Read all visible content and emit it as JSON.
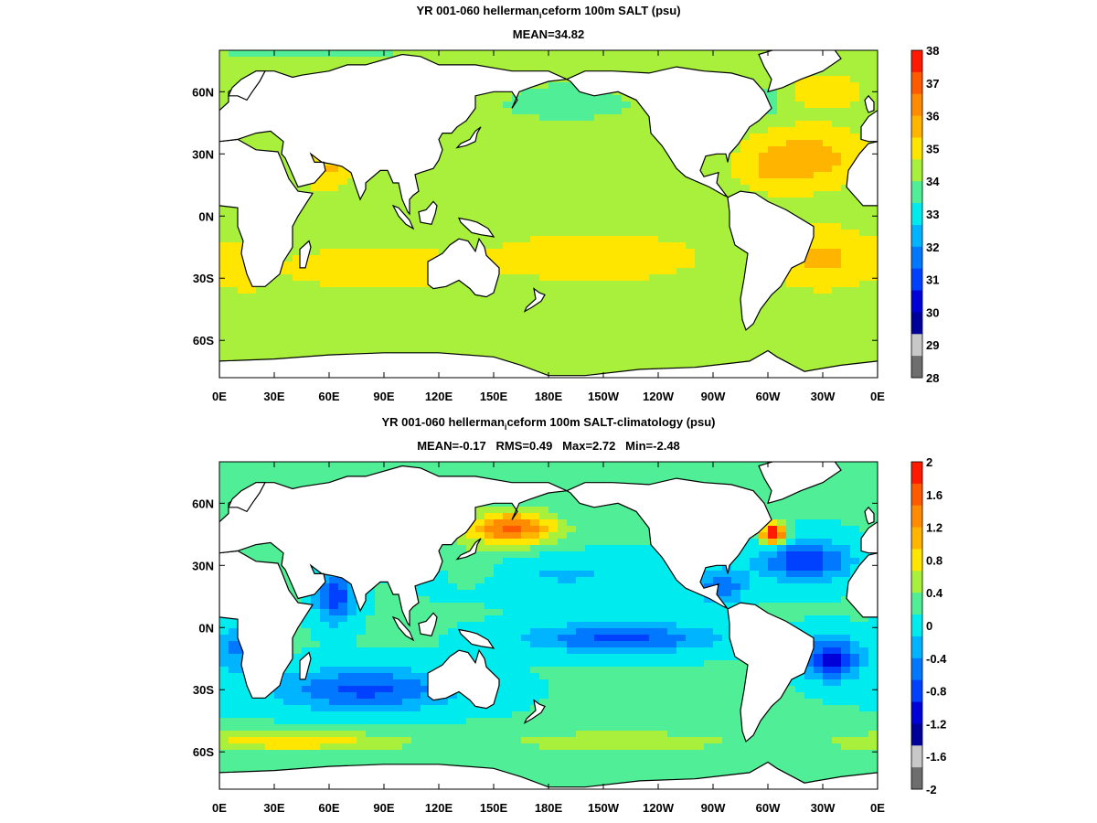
{
  "chart_data": [
    {
      "type": "heatmap",
      "title_main": "YR 001-060 hellerman",
      "title_sub": "i",
      "title_rest": "ceform 100m SALT (psu)",
      "stats": "MEAN=34.82",
      "x_ticks": [
        "0E",
        "30E",
        "60E",
        "90E",
        "120E",
        "150E",
        "180E",
        "150W",
        "120W",
        "90W",
        "60W",
        "30W",
        "0E"
      ],
      "y_ticks": [
        "60N",
        "30N",
        "0N",
        "30S",
        "60S"
      ],
      "y_tick_lats": [
        60,
        30,
        0,
        -30,
        -60
      ],
      "lat_range": [
        -78,
        80
      ],
      "colorbar_ticks": [
        "38",
        "37",
        "36",
        "35",
        "34",
        "33",
        "32",
        "31",
        "30",
        "29",
        "28"
      ],
      "colorbar_colors": [
        "#ff1a00",
        "#ff5a00",
        "#ff8c00",
        "#ffb400",
        "#ffe600",
        "#a8f03c",
        "#50ee96",
        "#00ebee",
        "#00b4ff",
        "#0078ff",
        "#0040ff",
        "#0000d8",
        "#00009a",
        "#c8c8c8",
        "#6e6e6e"
      ],
      "field_kind": "salt"
    },
    {
      "type": "heatmap",
      "title_main": "YR 001-060 hellerman",
      "title_sub": "i",
      "title_rest": "ceform 100m SALT-climatology (psu)",
      "stats": "MEAN=-0.17   RMS=0.49   Max=2.72   Min=-2.48",
      "x_ticks": [
        "0E",
        "30E",
        "60E",
        "90E",
        "120E",
        "150E",
        "180E",
        "150W",
        "120W",
        "90W",
        "60W",
        "30W",
        "0E"
      ],
      "y_ticks": [
        "60N",
        "30N",
        "0N",
        "30S",
        "60S"
      ],
      "y_tick_lats": [
        60,
        30,
        0,
        -30,
        -60
      ],
      "lat_range": [
        -78,
        80
      ],
      "colorbar_ticks": [
        "2",
        "1.6",
        "1.2",
        "0.8",
        "0.4",
        "0",
        "-0.4",
        "-0.8",
        "-1.2",
        "-1.6",
        "-2"
      ],
      "colorbar_colors": [
        "#ff1a00",
        "#ff5a00",
        "#ff8c00",
        "#ffb400",
        "#ffe600",
        "#a8f03c",
        "#50ee96",
        "#00ebee",
        "#00b4ff",
        "#0078ff",
        "#0040ff",
        "#0000d8",
        "#00009a",
        "#c8c8c8",
        "#6e6e6e"
      ],
      "field_kind": "anomaly"
    }
  ]
}
